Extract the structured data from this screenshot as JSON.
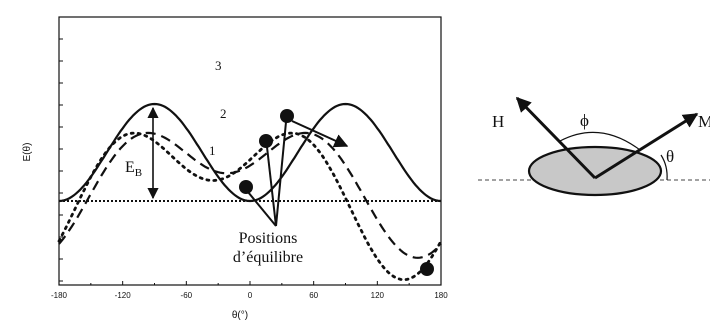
{
  "chart_data": {
    "type": "line",
    "xlabel": "θ(°)",
    "ylabel": "E(θ)",
    "xlim": [
      -180,
      180
    ],
    "x_ticks": [
      "-180",
      "-120",
      "-60",
      "0",
      "60",
      "120",
      "180"
    ],
    "series": [
      {
        "name": "1",
        "style": "solid",
        "amplitude": 1.0,
        "phase": 0,
        "offset": 0.0
      },
      {
        "name": "2",
        "style": "dashed",
        "amplitude": 1.32,
        "phase": 22,
        "offset": 0.0
      },
      {
        "name": "3",
        "style": "dotted",
        "amplitude": 1.55,
        "phase": 35,
        "offset": 0.05
      }
    ],
    "baseline_style": "dotted"
  },
  "labels": {
    "curve_1": "1",
    "curve_2": "2",
    "curve_3": "3",
    "energy_barrier": "E",
    "energy_barrier_sub": "B",
    "positions_line1": "Positions",
    "positions_line2": "d’équilibre"
  },
  "diagram": {
    "field_label": "H",
    "magnetization_label": "M",
    "phi_label": "ϕ",
    "theta_label": "θ",
    "ellipse_fill": "#c8c8c8"
  }
}
